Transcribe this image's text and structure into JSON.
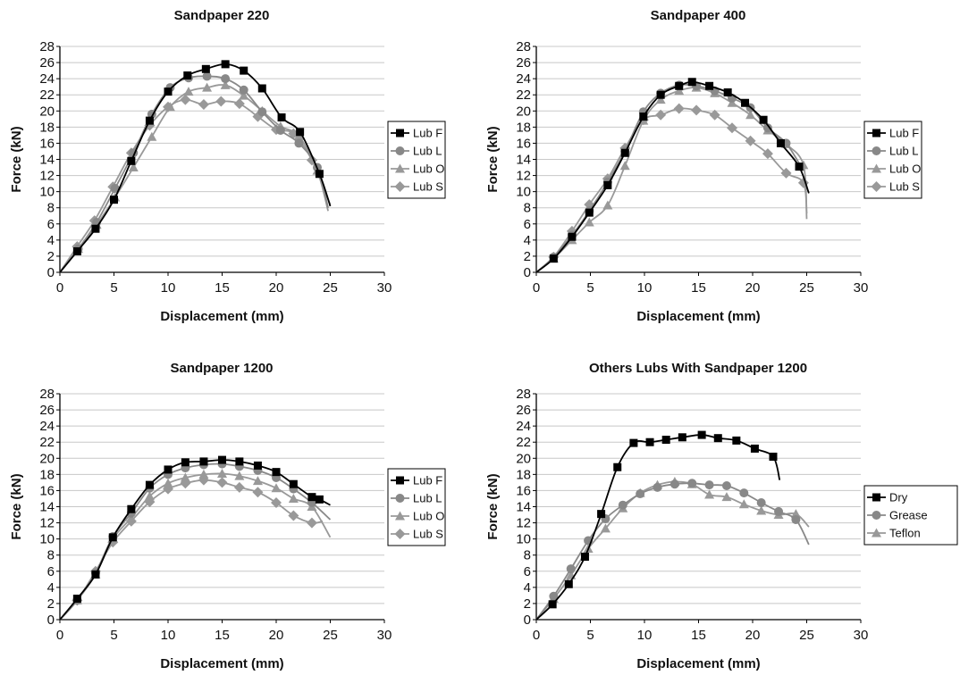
{
  "chart_data": [
    {
      "type": "line",
      "title": "Sandpaper 220",
      "xlabel": "Displacement (mm)",
      "ylabel": "Force (kN)",
      "xlim": [
        0,
        30
      ],
      "ylim": [
        0,
        28
      ],
      "xticks": [
        0,
        5,
        10,
        15,
        20,
        25,
        30
      ],
      "yticks": [
        0,
        2,
        4,
        6,
        8,
        10,
        12,
        14,
        16,
        18,
        20,
        22,
        24,
        26,
        28
      ],
      "grid": "horizontal",
      "legend": "right",
      "series": [
        {
          "name": "Lub F",
          "color": "#000000",
          "marker": "square",
          "x": [
            0,
            1.6,
            3.3,
            5.0,
            6.6,
            8.3,
            10.0,
            11.8,
            13.5,
            15.3,
            17.0,
            18.7,
            20.5,
            22.2,
            24.0,
            25.0
          ],
          "y": [
            0,
            2.6,
            5.4,
            9.0,
            13.8,
            18.8,
            22.4,
            24.4,
            25.2,
            25.8,
            25.0,
            22.8,
            19.2,
            17.4,
            12.2,
            8.2
          ]
        },
        {
          "name": "Lub L",
          "color": "#888888",
          "marker": "circle",
          "x": [
            0,
            1.7,
            3.4,
            5.1,
            6.8,
            8.5,
            10.2,
            11.9,
            13.6,
            15.3,
            17.0,
            18.7,
            20.4,
            22.1,
            23.8,
            24.8
          ],
          "y": [
            0,
            2.9,
            6.2,
            10.4,
            14.8,
            19.6,
            22.9,
            24.1,
            24.3,
            24.0,
            22.6,
            19.9,
            17.6,
            16.0,
            13.0,
            8.0
          ]
        },
        {
          "name": "Lub O",
          "color": "#999999",
          "marker": "triangle",
          "x": [
            0,
            1.7,
            3.4,
            5.1,
            6.8,
            8.5,
            10.2,
            11.9,
            13.6,
            15.3,
            17.0,
            18.7,
            20.4,
            22.1,
            23.8,
            24.8
          ],
          "y": [
            0,
            2.9,
            5.9,
            9.3,
            13.0,
            16.8,
            20.5,
            22.4,
            22.9,
            23.2,
            21.9,
            20.0,
            18.1,
            16.9,
            12.6,
            7.6
          ]
        },
        {
          "name": "Lub S",
          "color": "#999999",
          "marker": "diamond",
          "x": [
            0,
            1.6,
            3.2,
            4.9,
            6.6,
            8.3,
            10.0,
            11.6,
            13.3,
            14.9,
            16.6,
            18.3,
            20.0,
            21.6,
            23.3,
            25.0
          ],
          "y": [
            0,
            3.2,
            6.4,
            10.6,
            14.8,
            18.2,
            20.5,
            21.4,
            20.8,
            21.2,
            20.9,
            19.3,
            17.7,
            17.2,
            13.9,
            8.4
          ]
        }
      ]
    },
    {
      "type": "line",
      "title": "Sandpaper 400",
      "xlabel": "Displacement (mm)",
      "ylabel": "Force (kN)",
      "xlim": [
        0,
        30
      ],
      "ylim": [
        0,
        28
      ],
      "xticks": [
        0,
        5,
        10,
        15,
        20,
        25,
        30
      ],
      "yticks": [
        0,
        2,
        4,
        6,
        8,
        10,
        12,
        14,
        16,
        18,
        20,
        22,
        24,
        26,
        28
      ],
      "grid": "horizontal",
      "legend": "right",
      "series": [
        {
          "name": "Lub F",
          "color": "#000000",
          "marker": "square",
          "x": [
            0,
            1.6,
            3.3,
            4.9,
            6.6,
            8.2,
            9.9,
            11.5,
            13.2,
            14.4,
            16.0,
            17.7,
            19.3,
            21.0,
            22.6,
            24.3,
            25.2
          ],
          "y": [
            0,
            1.7,
            4.4,
            7.4,
            10.8,
            14.8,
            19.3,
            22.0,
            23.1,
            23.6,
            23.1,
            22.3,
            21.0,
            18.9,
            16.0,
            13.1,
            9.8
          ]
        },
        {
          "name": "Lub L",
          "color": "#888888",
          "marker": "circle",
          "x": [
            0,
            1.6,
            3.3,
            4.9,
            6.6,
            8.2,
            9.9,
            11.5,
            13.2,
            14.8,
            16.5,
            18.1,
            19.8,
            21.4,
            23.1,
            24.7
          ],
          "y": [
            0,
            1.9,
            4.6,
            7.6,
            11.2,
            15.0,
            19.9,
            22.2,
            23.2,
            23.1,
            22.5,
            21.6,
            20.4,
            17.9,
            16.0,
            12.6
          ]
        },
        {
          "name": "Lub O",
          "color": "#999999",
          "marker": "triangle",
          "x": [
            0,
            1.6,
            3.3,
            4.9,
            6.6,
            8.2,
            9.9,
            11.5,
            13.2,
            14.8,
            16.5,
            18.1,
            19.8,
            21.4,
            23.1,
            24.7,
            25.0
          ],
          "y": [
            0,
            1.7,
            4.0,
            6.2,
            8.3,
            13.2,
            18.8,
            21.4,
            22.5,
            22.9,
            22.2,
            21.0,
            19.5,
            17.6,
            15.9,
            13.3,
            6.6
          ]
        },
        {
          "name": "Lub S",
          "color": "#999999",
          "marker": "diamond",
          "x": [
            0,
            1.6,
            3.3,
            4.9,
            6.6,
            8.2,
            9.9,
            11.5,
            13.2,
            14.8,
            16.5,
            18.1,
            19.8,
            21.4,
            23.1,
            24.7,
            25.0
          ],
          "y": [
            0,
            1.9,
            5.1,
            8.4,
            11.6,
            15.4,
            18.9,
            19.5,
            20.3,
            20.1,
            19.5,
            17.9,
            16.3,
            14.7,
            12.3,
            11.1,
            7.3
          ]
        }
      ]
    },
    {
      "type": "line",
      "title": "Sandpaper 1200",
      "xlabel": "Displacement (mm)",
      "ylabel": "Force (kN)",
      "xlim": [
        0,
        30
      ],
      "ylim": [
        0,
        28
      ],
      "xticks": [
        0,
        5,
        10,
        15,
        20,
        25,
        30
      ],
      "yticks": [
        0,
        2,
        4,
        6,
        8,
        10,
        12,
        14,
        16,
        18,
        20,
        22,
        24,
        26,
        28
      ],
      "grid": "horizontal",
      "legend": "right",
      "series": [
        {
          "name": "Lub F",
          "color": "#000000",
          "marker": "square",
          "x": [
            0,
            1.6,
            3.3,
            4.9,
            6.6,
            8.3,
            10.0,
            11.6,
            13.3,
            15.0,
            16.6,
            18.3,
            20.0,
            21.6,
            23.3,
            24.0,
            25.0
          ],
          "y": [
            0,
            2.6,
            5.6,
            10.2,
            13.7,
            16.7,
            18.6,
            19.5,
            19.6,
            19.8,
            19.6,
            19.1,
            18.3,
            16.8,
            15.2,
            14.9,
            14.2
          ]
        },
        {
          "name": "Lub L",
          "color": "#888888",
          "marker": "circle",
          "x": [
            0,
            1.6,
            3.3,
            4.9,
            6.6,
            8.3,
            10.0,
            11.6,
            13.3,
            15.0,
            16.6,
            18.3,
            20.0,
            21.6,
            23.3,
            25.0
          ],
          "y": [
            0,
            2.4,
            5.8,
            10.3,
            13.2,
            16.3,
            18.0,
            18.8,
            19.2,
            19.3,
            19.0,
            18.5,
            17.6,
            16.2,
            14.5,
            12.4
          ]
        },
        {
          "name": "Lub O",
          "color": "#999999",
          "marker": "triangle",
          "x": [
            0,
            1.6,
            3.3,
            4.9,
            6.6,
            8.3,
            10.0,
            11.6,
            13.3,
            15.0,
            16.6,
            18.3,
            20.0,
            21.6,
            23.3,
            25.0
          ],
          "y": [
            0,
            2.4,
            5.6,
            10.0,
            12.6,
            15.3,
            16.9,
            17.6,
            18.0,
            18.1,
            17.8,
            17.2,
            16.3,
            15.0,
            14.0,
            10.2
          ]
        },
        {
          "name": "Lub S",
          "color": "#999999",
          "marker": "diamond",
          "x": [
            0,
            1.6,
            3.3,
            4.9,
            6.6,
            8.3,
            10.0,
            11.6,
            13.3,
            15.0,
            16.6,
            18.3,
            20.0,
            21.6,
            23.3,
            24.3
          ],
          "y": [
            0,
            2.4,
            6.0,
            9.6,
            12.2,
            14.6,
            16.2,
            16.9,
            17.3,
            17.0,
            16.4,
            15.8,
            14.5,
            12.9,
            12.0,
            12.2
          ]
        }
      ]
    },
    {
      "type": "line",
      "title": "Others Lubs With Sandpaper 1200",
      "xlabel": "Displacement (mm)",
      "ylabel": "Force (kN)",
      "xlim": [
        0,
        30
      ],
      "ylim": [
        0,
        28
      ],
      "xticks": [
        0,
        5,
        10,
        15,
        20,
        25,
        30
      ],
      "yticks": [
        0,
        2,
        4,
        6,
        8,
        10,
        12,
        14,
        16,
        18,
        20,
        22,
        24,
        26,
        28
      ],
      "grid": "horizontal",
      "legend": "right",
      "series": [
        {
          "name": "Dry",
          "color": "#000000",
          "marker": "square",
          "x": [
            0,
            1.5,
            3.0,
            4.5,
            6.0,
            7.5,
            9.0,
            10.5,
            12.0,
            13.5,
            15.3,
            16.8,
            18.5,
            20.2,
            21.9,
            22.5
          ],
          "y": [
            0,
            1.9,
            4.4,
            7.8,
            13.1,
            18.9,
            21.9,
            22.0,
            22.3,
            22.6,
            22.9,
            22.5,
            22.2,
            21.2,
            20.2,
            17.3
          ]
        },
        {
          "name": "Grease",
          "color": "#888888",
          "marker": "circle",
          "x": [
            0,
            1.6,
            3.2,
            4.8,
            6.4,
            8.0,
            9.6,
            11.2,
            12.8,
            14.4,
            16.0,
            17.6,
            19.2,
            20.8,
            22.4,
            24.0,
            25.2
          ],
          "y": [
            0,
            2.9,
            6.3,
            9.8,
            12.5,
            14.2,
            15.6,
            16.4,
            16.8,
            16.9,
            16.7,
            16.6,
            15.7,
            14.5,
            13.4,
            12.4,
            9.3
          ]
        },
        {
          "name": "Teflon",
          "color": "#999999",
          "marker": "triangle",
          "x": [
            0,
            1.6,
            3.2,
            4.8,
            6.4,
            8.0,
            9.6,
            11.2,
            12.8,
            14.4,
            16.0,
            17.6,
            19.2,
            20.8,
            22.4,
            24.0,
            25.2
          ],
          "y": [
            0,
            2.6,
            5.5,
            8.8,
            11.3,
            13.8,
            15.7,
            16.7,
            17.1,
            16.8,
            15.5,
            15.2,
            14.3,
            13.5,
            13.0,
            13.1,
            11.5
          ]
        }
      ]
    }
  ]
}
